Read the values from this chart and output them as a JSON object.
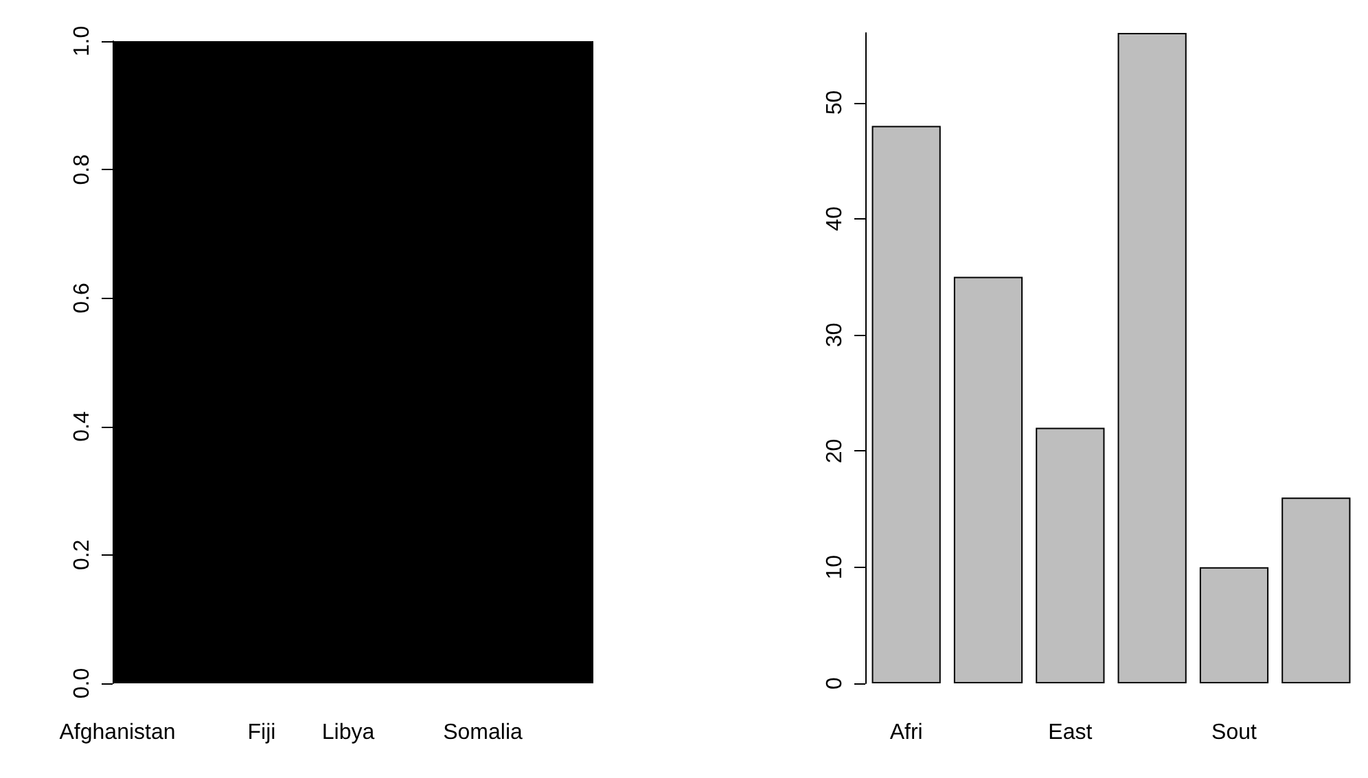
{
  "chart_data": [
    {
      "type": "bar",
      "categories": [
        "Afghanistan",
        null,
        null,
        null,
        null,
        null,
        null,
        null,
        null,
        null,
        null,
        null,
        null,
        null,
        null,
        "Fiji",
        null,
        null,
        null,
        null,
        null,
        null,
        null,
        null,
        "Libya",
        null,
        null,
        null,
        null,
        null,
        null,
        null,
        null,
        null,
        null,
        null,
        null,
        null,
        "Somalia",
        null,
        null,
        null,
        null,
        null,
        null,
        null,
        null,
        null,
        null,
        null
      ],
      "values": [
        1,
        1,
        1,
        1,
        1,
        1,
        1,
        1,
        1,
        1,
        1,
        1,
        1,
        1,
        1,
        1,
        1,
        1,
        1,
        1,
        1,
        1,
        1,
        1,
        1,
        1,
        1,
        1,
        1,
        1,
        1,
        1,
        1,
        1,
        1,
        1,
        1,
        1,
        1,
        1,
        1,
        1,
        1,
        1,
        1,
        1,
        1,
        1,
        1,
        1
      ],
      "color": "#000000",
      "ylim": [
        0,
        1
      ],
      "yticks": [
        {
          "value": 0,
          "label": "0.0"
        },
        0.2,
        0.4,
        0.6,
        0.8,
        {
          "value": 1,
          "label": "1.0"
        }
      ],
      "grid": false
    },
    {
      "type": "bar",
      "categories": [
        "Afri",
        null,
        "East",
        null,
        "Sout",
        null
      ],
      "values": [
        48,
        35,
        22,
        56,
        10,
        16
      ],
      "color": "#bebebe",
      "ylim": [
        0,
        56
      ],
      "yticks": [
        0,
        10,
        20,
        30,
        40,
        50
      ],
      "grid": false
    }
  ]
}
